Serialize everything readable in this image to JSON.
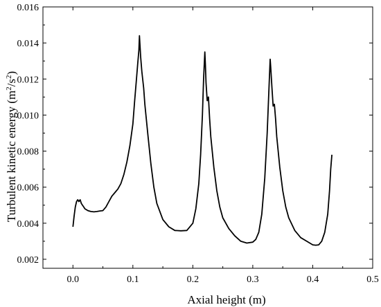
{
  "chart_data": {
    "type": "line",
    "xlabel": "Axial height (m)",
    "ylabel": "Turbulent kinetic energy (m²/s²)",
    "ylabel_parts": {
      "pre": "Turbulent kinetic energy (m",
      "sup1": "2",
      "mid": "/s",
      "sup2": "2",
      "post": ")"
    },
    "xlim": [
      -0.05,
      0.5
    ],
    "ylim": [
      0.0015,
      0.016
    ],
    "xticks": [
      0.0,
      0.1,
      0.2,
      0.3,
      0.4,
      0.5
    ],
    "xtick_labels": [
      "0.0",
      "0.1",
      "0.2",
      "0.3",
      "0.4",
      "0.5"
    ],
    "yticks": [
      0.002,
      0.004,
      0.006,
      0.008,
      0.01,
      0.012,
      0.014,
      0.016
    ],
    "ytick_labels": [
      "0.002",
      "0.004",
      "0.006",
      "0.008",
      "0.010",
      "0.012",
      "0.014",
      "0.016"
    ],
    "grid": false,
    "legend": "none",
    "series": [
      {
        "color": "#000000",
        "x": [
          0.0,
          0.002,
          0.004,
          0.006,
          0.008,
          0.01,
          0.012,
          0.014,
          0.016,
          0.018,
          0.02,
          0.025,
          0.03,
          0.035,
          0.04,
          0.045,
          0.05,
          0.055,
          0.06,
          0.065,
          0.07,
          0.075,
          0.08,
          0.085,
          0.09,
          0.095,
          0.1,
          0.103,
          0.106,
          0.108,
          0.11,
          0.111,
          0.112,
          0.113,
          0.115,
          0.118,
          0.12,
          0.125,
          0.13,
          0.135,
          0.14,
          0.15,
          0.16,
          0.17,
          0.18,
          0.19,
          0.2,
          0.205,
          0.21,
          0.213,
          0.216,
          0.218,
          0.22,
          0.221,
          0.222,
          0.224,
          0.226,
          0.228,
          0.23,
          0.235,
          0.24,
          0.245,
          0.25,
          0.26,
          0.27,
          0.28,
          0.29,
          0.3,
          0.305,
          0.31,
          0.315,
          0.32,
          0.324,
          0.327,
          0.329,
          0.33,
          0.332,
          0.334,
          0.336,
          0.338,
          0.34,
          0.345,
          0.35,
          0.355,
          0.36,
          0.37,
          0.38,
          0.39,
          0.4,
          0.405,
          0.41,
          0.415,
          0.42,
          0.425,
          0.428,
          0.43,
          0.432
        ],
        "y": [
          0.0038,
          0.0044,
          0.0049,
          0.0052,
          0.0053,
          0.0052,
          0.0053,
          0.0051,
          0.005,
          0.0049,
          0.0048,
          0.0047,
          0.00465,
          0.00463,
          0.00465,
          0.00468,
          0.0047,
          0.0049,
          0.0052,
          0.0055,
          0.0057,
          0.0059,
          0.0062,
          0.0067,
          0.0074,
          0.0083,
          0.0095,
          0.0108,
          0.012,
          0.0128,
          0.0136,
          0.0144,
          0.0138,
          0.0132,
          0.0124,
          0.0115,
          0.0106,
          0.0089,
          0.0073,
          0.006,
          0.0051,
          0.0042,
          0.0038,
          0.0036,
          0.00358,
          0.0036,
          0.004,
          0.0048,
          0.0062,
          0.0078,
          0.01,
          0.012,
          0.0135,
          0.0128,
          0.0118,
          0.0108,
          0.011,
          0.0098,
          0.0088,
          0.0071,
          0.0058,
          0.0049,
          0.0043,
          0.0037,
          0.0033,
          0.003,
          0.0029,
          0.00295,
          0.0031,
          0.0035,
          0.0045,
          0.0065,
          0.009,
          0.0115,
          0.0131,
          0.0126,
          0.0115,
          0.0105,
          0.0106,
          0.0098,
          0.0088,
          0.0071,
          0.0058,
          0.0049,
          0.0043,
          0.0036,
          0.0032,
          0.003,
          0.0028,
          0.00278,
          0.0028,
          0.003,
          0.0035,
          0.0045,
          0.0058,
          0.007,
          0.0078
        ]
      }
    ]
  }
}
